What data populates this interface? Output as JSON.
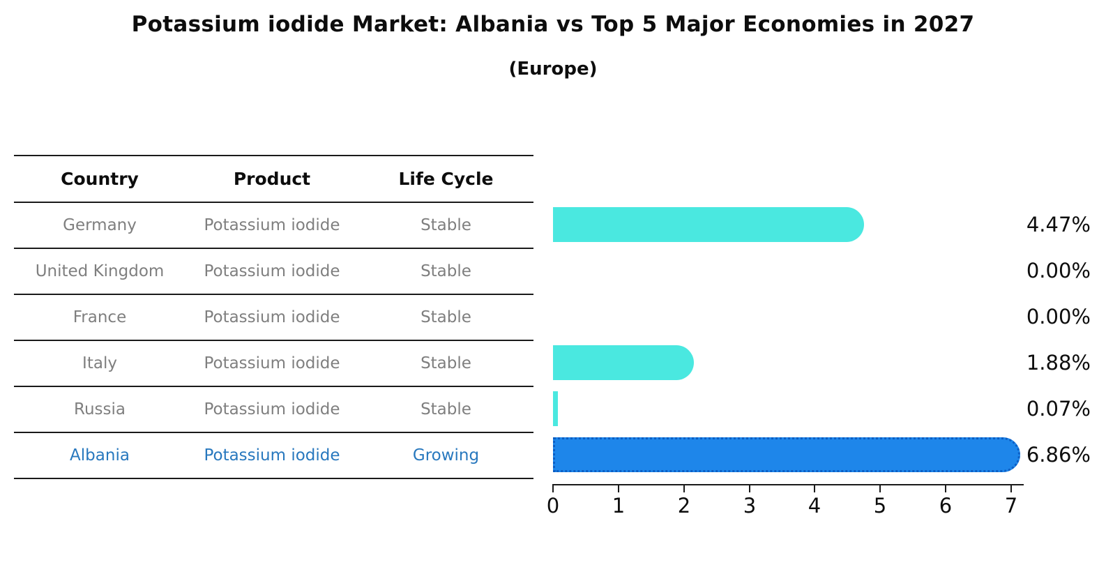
{
  "title": "Potassium iodide Market: Albania vs Top 5 Major Economies in 2027",
  "subtitle": "(Europe)",
  "table": {
    "headers": [
      "Country",
      "Product",
      "Life Cycle"
    ],
    "rows": [
      {
        "country": "Germany",
        "product": "Potassium iodide",
        "life_cycle": "Stable",
        "highlighted": false
      },
      {
        "country": "United Kingdom",
        "product": "Potassium iodide",
        "life_cycle": "Stable",
        "highlighted": false
      },
      {
        "country": "France",
        "product": "Potassium iodide",
        "life_cycle": "Stable",
        "highlighted": false
      },
      {
        "country": "Italy",
        "product": "Potassium iodide",
        "life_cycle": "Stable",
        "highlighted": false
      },
      {
        "country": "Russia",
        "product": "Potassium iodide",
        "life_cycle": "Stable",
        "highlighted": false
      },
      {
        "country": "Albania",
        "product": "Potassium iodide",
        "life_cycle": "Growing",
        "highlighted": true
      }
    ]
  },
  "chart_data": {
    "type": "bar",
    "orientation": "horizontal",
    "title": "Potassium iodide Market: Albania vs Top 5 Major Economies in 2027 (Europe)",
    "categories": [
      "Germany",
      "United Kingdom",
      "France",
      "Italy",
      "Russia",
      "Albania"
    ],
    "values": [
      4.47,
      0.0,
      0.0,
      1.88,
      0.07,
      6.86
    ],
    "value_labels": [
      "4.47%",
      "0.00%",
      "0.00%",
      "1.88%",
      "0.07%",
      "6.86%"
    ],
    "x_ticks": [
      "0",
      "1",
      "2",
      "3",
      "4",
      "5",
      "6",
      "7"
    ],
    "xlim": [
      0,
      7
    ],
    "grid": false,
    "legend_position": "none",
    "highlight_index": 5
  },
  "colors": {
    "bar_color": "#4ae8e0",
    "highlight_bar_color": "#1e86ea",
    "highlight_border_color": "#0c5ec4",
    "highlight_text_color": "#2878be",
    "row_text_color": "#7f7f7f",
    "line_color": "#1a1a1a"
  }
}
